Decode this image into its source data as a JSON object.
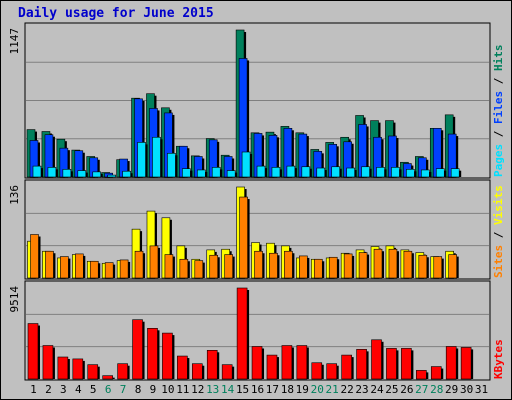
{
  "title": "Daily usage for June 2015",
  "colors": {
    "background": "#c0c0c0",
    "hits": "#00805c",
    "files": "#0040ff",
    "pages": "#00e0ff",
    "visits": "#ffff00",
    "sites": "#ff8000",
    "kbytes": "#ff0000",
    "weekend_label": "#00805c",
    "weekday_label": "#000000",
    "grid": "#808080"
  },
  "chart_data": [
    {
      "type": "bar",
      "panel": "top",
      "ymax_label": "1147",
      "ylim": [
        0,
        1147
      ],
      "grid": true,
      "legend": [
        {
          "label": "Pages",
          "color_key": "pages"
        },
        {
          "label": " / ",
          "color_key": "weekday_label"
        },
        {
          "label": "Files",
          "color_key": "files"
        },
        {
          "label": " / ",
          "color_key": "weekday_label"
        },
        {
          "label": "Hits",
          "color_key": "hits"
        }
      ],
      "categories": [
        "1",
        "2",
        "3",
        "4",
        "5",
        "6",
        "7",
        "8",
        "9",
        "10",
        "11",
        "12",
        "13",
        "14",
        "15",
        "16",
        "17",
        "18",
        "19",
        "20",
        "21",
        "22",
        "23",
        "24",
        "25",
        "26",
        "27",
        "28",
        "29",
        "30",
        "31"
      ],
      "series": [
        {
          "name": "Hits",
          "color_key": "hits",
          "values": [
            370,
            355,
            295,
            210,
            160,
            35,
            135,
            615,
            650,
            540,
            240,
            165,
            300,
            170,
            1147,
            345,
            350,
            395,
            345,
            215,
            270,
            310,
            480,
            440,
            440,
            115,
            160,
            380,
            485,
            0,
            0
          ]
        },
        {
          "name": "Files",
          "color_key": "files",
          "values": [
            285,
            330,
            225,
            205,
            150,
            30,
            140,
            610,
            535,
            500,
            240,
            160,
            290,
            160,
            925,
            340,
            325,
            380,
            335,
            200,
            255,
            275,
            410,
            310,
            320,
            105,
            150,
            380,
            335,
            0,
            0
          ]
        },
        {
          "name": "Pages",
          "color_key": "pages",
          "values": [
            85,
            75,
            60,
            50,
            40,
            15,
            45,
            270,
            310,
            185,
            65,
            55,
            75,
            50,
            195,
            85,
            75,
            85,
            80,
            70,
            80,
            70,
            80,
            75,
            75,
            60,
            55,
            65,
            65,
            0,
            0
          ]
        }
      ]
    },
    {
      "type": "bar",
      "panel": "middle",
      "ymax_label": "136",
      "ylim": [
        0,
        136
      ],
      "grid": true,
      "legend": [
        {
          "label": "Sites",
          "color_key": "sites"
        },
        {
          "label": " / ",
          "color_key": "weekday_label"
        },
        {
          "label": "Visits",
          "color_key": "visits"
        }
      ],
      "categories": [
        "1",
        "2",
        "3",
        "4",
        "5",
        "6",
        "7",
        "8",
        "9",
        "10",
        "11",
        "12",
        "13",
        "14",
        "15",
        "16",
        "17",
        "18",
        "19",
        "20",
        "21",
        "22",
        "23",
        "24",
        "25",
        "26",
        "27",
        "28",
        "29",
        "30",
        "31"
      ],
      "series": [
        {
          "name": "Visits",
          "color_key": "visits",
          "values": [
            55,
            40,
            30,
            35,
            25,
            22,
            26,
            73,
            100,
            90,
            48,
            28,
            42,
            43,
            136,
            53,
            52,
            48,
            30,
            28,
            30,
            37,
            42,
            47,
            48,
            42,
            38,
            32,
            40,
            0,
            0
          ]
        },
        {
          "name": "Sites",
          "color_key": "sites",
          "values": [
            65,
            40,
            32,
            36,
            25,
            23,
            27,
            40,
            48,
            35,
            28,
            26,
            34,
            35,
            121,
            40,
            37,
            40,
            33,
            28,
            31,
            36,
            38,
            43,
            43,
            40,
            34,
            32,
            35,
            0,
            0
          ]
        }
      ]
    },
    {
      "type": "bar",
      "panel": "bottom",
      "ymax_label": "9514",
      "ylim": [
        0,
        9514
      ],
      "grid": true,
      "legend": [
        {
          "label": "KBytes",
          "color_key": "kbytes"
        }
      ],
      "categories": [
        "1",
        "2",
        "3",
        "4",
        "5",
        "6",
        "7",
        "8",
        "9",
        "10",
        "11",
        "12",
        "13",
        "14",
        "15",
        "16",
        "17",
        "18",
        "19",
        "20",
        "21",
        "22",
        "23",
        "24",
        "25",
        "26",
        "27",
        "28",
        "29",
        "30",
        "31"
      ],
      "series": [
        {
          "name": "KBytes",
          "color_key": "kbytes",
          "values": [
            5800,
            3500,
            2300,
            2100,
            1500,
            350,
            1600,
            6200,
            5300,
            4800,
            2400,
            1600,
            3000,
            1500,
            9514,
            3400,
            2500,
            3500,
            3500,
            1700,
            1600,
            2500,
            3100,
            4100,
            3200,
            3200,
            900,
            1300,
            3400,
            3300,
            0
          ]
        }
      ]
    }
  ],
  "x_axis": {
    "labels": [
      "1",
      "2",
      "3",
      "4",
      "5",
      "6",
      "7",
      "8",
      "9",
      "10",
      "11",
      "12",
      "13",
      "14",
      "15",
      "16",
      "17",
      "18",
      "19",
      "20",
      "21",
      "22",
      "23",
      "24",
      "25",
      "26",
      "27",
      "28",
      "29",
      "30",
      "31"
    ],
    "weekend_days": [
      "6",
      "7",
      "13",
      "14",
      "20",
      "21",
      "27",
      "28"
    ]
  }
}
